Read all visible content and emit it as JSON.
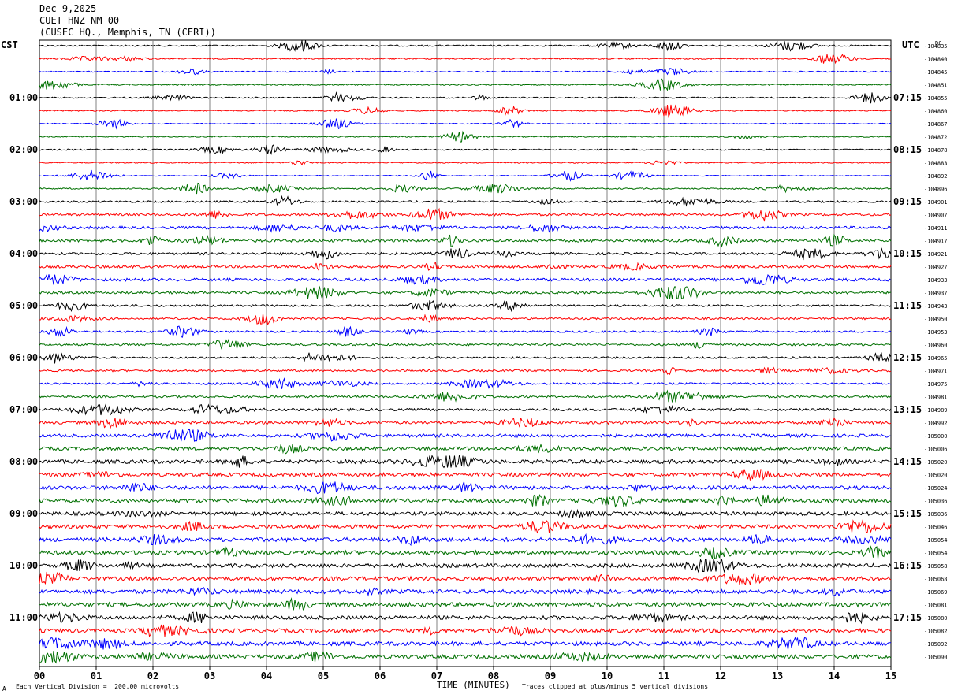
{
  "header": {
    "date": "Dec 9,2025",
    "station": "CUET HNZ NM 00",
    "location": "(CUSEC HQ., Memphis, TN (CERI))"
  },
  "left_timezone": "CST",
  "right_timezone": "UTC",
  "right_corner_label": "DC",
  "footer": {
    "scale_note": "Each Vertical Division =  200.00 microvolts",
    "clip_note": "Traces clipped at plus/minus 5 vertical divisions",
    "corner_mark": "A"
  },
  "colors": {
    "trace_cycle": [
      "#000000",
      "#ff0000",
      "#0000ff",
      "#007000"
    ],
    "grid": "#808080"
  },
  "chart_data": {
    "type": "line",
    "title": "",
    "xlabel": "TIME (MINUTES)",
    "ylabel": "",
    "xlim": [
      0,
      15
    ],
    "x_ticks": [
      "00",
      "01",
      "02",
      "03",
      "04",
      "05",
      "06",
      "07",
      "08",
      "09",
      "10",
      "11",
      "12",
      "13",
      "14",
      "15"
    ],
    "left_hour_labels": [
      "01:00",
      "02:00",
      "03:00",
      "04:00",
      "05:00",
      "06:00",
      "07:00",
      "08:00",
      "09:00",
      "10:00",
      "11:00"
    ],
    "right_hour_labels": [
      "07:15",
      "08:15",
      "09:15",
      "10:15",
      "11:15",
      "12:15",
      "13:15",
      "14:15",
      "15:15",
      "16:15",
      "17:15"
    ],
    "trace_count": 48,
    "trace_minutes": 15,
    "dc_offsets": [
      "-104835",
      "-104840",
      "-104845",
      "-104851",
      "-104855",
      "-104860",
      "-104867",
      "-104872",
      "-104878",
      "-104883",
      "-104892",
      "-104896",
      "-104901",
      "-104907",
      "-104911",
      "-104917",
      "-104921",
      "-104927",
      "-104933",
      "-104937",
      "-104943",
      "-104950",
      "-104953",
      "-104960",
      "-104965",
      "-104971",
      "-104975",
      "-104981",
      "-104989",
      "-104992",
      "-105000",
      "-105006",
      "-105020",
      "-105020",
      "-105024",
      "-105036",
      "-105036",
      "-105046",
      "-105054",
      "-105054",
      "-105058",
      "-105068",
      "-105069",
      "-105081",
      "-105080",
      "-105082",
      "-105092",
      "-105090"
    ],
    "noise_level": [
      0.8,
      0.7,
      0.6,
      0.7,
      0.7,
      0.6,
      0.5,
      0.6,
      0.7,
      0.6,
      0.5,
      0.7,
      1.0,
      1.2,
      1.4,
      1.5,
      1.3,
      1.4,
      1.5,
      1.3,
      1.1,
      1.0,
      1.0,
      1.1,
      1.0,
      1.0,
      1.0,
      1.1,
      1.3,
      1.5,
      1.7,
      1.8,
      2.0,
      1.9,
      2.0,
      2.0,
      1.9,
      2.0,
      2.1,
      2.1,
      2.0,
      2.0,
      2.1,
      2.2,
      2.0,
      2.0,
      2.1,
      2.1
    ],
    "units": "microvolts",
    "vertical_division_microvolts": 200.0,
    "clip_divisions": 5
  }
}
